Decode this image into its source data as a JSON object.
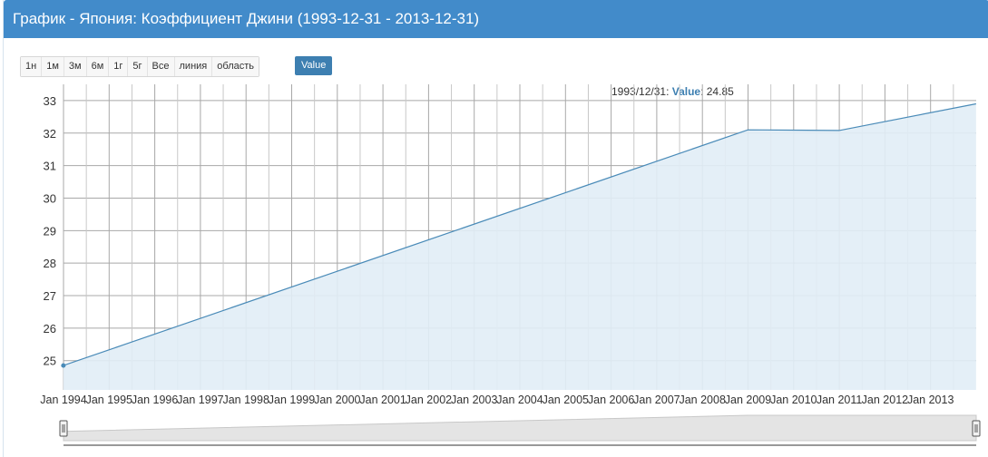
{
  "header": {
    "title": "График - Япония: Коэффициент Джини (1993-12-31 - 2013-12-31)"
  },
  "range_buttons": [
    "1н",
    "1м",
    "3м",
    "6м",
    "1г",
    "5г",
    "Все",
    "линия",
    "область"
  ],
  "series_button": "Value",
  "tooltip": {
    "date": "1993/12/31",
    "sep": ": ",
    "name": "Value",
    "value": ": 24.85"
  },
  "colors": {
    "header_bg": "#428bca",
    "series_line": "#4a8bb8",
    "series_fill": "#e1edf6",
    "grid": "#a8a8a8"
  },
  "chart_data": {
    "type": "area",
    "title": "",
    "xlabel": "",
    "ylabel": "",
    "ylim": [
      24.1,
      33.5
    ],
    "yticks": [
      25,
      26,
      27,
      28,
      29,
      30,
      31,
      32,
      33
    ],
    "x_tick_labels": [
      "Jan 1994",
      "Jan 1995",
      "Jan 1996",
      "Jan 1997",
      "Jan 1998",
      "Jan 1999",
      "Jan 2000",
      "Jan 2001",
      "Jan 2002",
      "Jan 2003",
      "Jan 2004",
      "Jan 2005",
      "Jan 2006",
      "Jan 2007",
      "Jan 2008",
      "Jan 2009",
      "Jan 2010",
      "Jan 2011",
      "Jan 2012",
      "Jan 2013"
    ],
    "series": [
      {
        "name": "Value",
        "x": [
          "1993-12-31",
          "2008-12-31",
          "2010-12-31",
          "2013-12-31"
        ],
        "values": [
          24.85,
          32.1,
          32.08,
          32.9
        ]
      }
    ],
    "grid": true,
    "navigator": true
  }
}
